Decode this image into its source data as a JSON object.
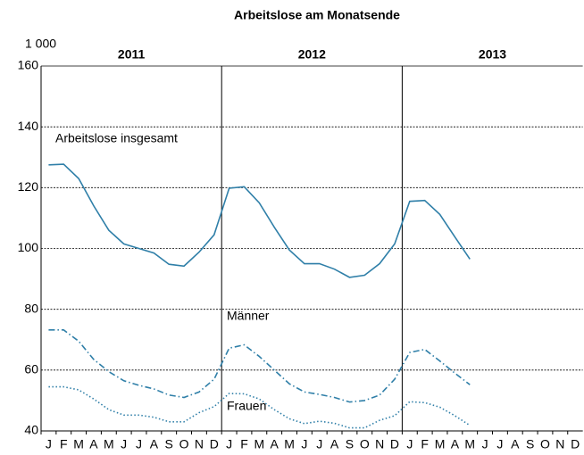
{
  "chart_data": {
    "type": "line",
    "title": "Arbeitslose am Monatsende",
    "y_unit": "1 000",
    "years": [
      "2011",
      "2012",
      "2013"
    ],
    "categories": [
      "J",
      "F",
      "M",
      "A",
      "M",
      "J",
      "J",
      "A",
      "S",
      "O",
      "N",
      "D",
      "J",
      "F",
      "M",
      "A",
      "M",
      "J",
      "J",
      "A",
      "S",
      "O",
      "N",
      "D",
      "J",
      "F",
      "M",
      "A",
      "M",
      "J",
      "J",
      "A",
      "S",
      "O",
      "N",
      "D"
    ],
    "series": [
      {
        "name": "Arbeitslose insgesamt",
        "color": "#2f7fa8",
        "dash": "solid",
        "values": [
          127.5,
          127.7,
          123,
          114,
          106,
          101.5,
          100,
          98.5,
          94.8,
          94.2,
          98.8,
          104.5,
          119.8,
          120.3,
          115,
          107,
          99.5,
          95,
          95,
          93.2,
          90.5,
          91.2,
          95,
          101.5,
          115.5,
          115.8,
          111.2,
          103.8,
          96.5,
          null,
          null,
          null,
          null,
          null,
          null,
          null
        ]
      },
      {
        "name": "Männer",
        "color": "#2f7fa8",
        "dash": "dashdot",
        "values": [
          73.2,
          73.2,
          69.5,
          63.5,
          59.5,
          56.5,
          55,
          53.8,
          51.8,
          51,
          52.8,
          57,
          67.2,
          68.3,
          64.5,
          60,
          55.5,
          52.8,
          52,
          51,
          49.5,
          50,
          51.8,
          57,
          65.8,
          66.8,
          63,
          59,
          55.2,
          null,
          null,
          null,
          null,
          null,
          null,
          null
        ]
      },
      {
        "name": "Frauen",
        "color": "#2f7fa8",
        "dash": "dotted",
        "values": [
          54.5,
          54.5,
          53.5,
          50.5,
          47,
          45.2,
          45.2,
          44.5,
          43,
          43,
          46,
          48,
          52.3,
          52.2,
          50.5,
          47,
          44,
          42.4,
          43.2,
          42.5,
          41,
          41,
          43.5,
          45,
          49.6,
          49.3,
          47.8,
          45,
          41.8,
          null,
          null,
          null,
          null,
          null,
          null,
          null
        ]
      }
    ],
    "ylim": [
      40,
      160
    ],
    "yticks": [
      40,
      60,
      80,
      100,
      120,
      140,
      160
    ],
    "grid": true
  }
}
